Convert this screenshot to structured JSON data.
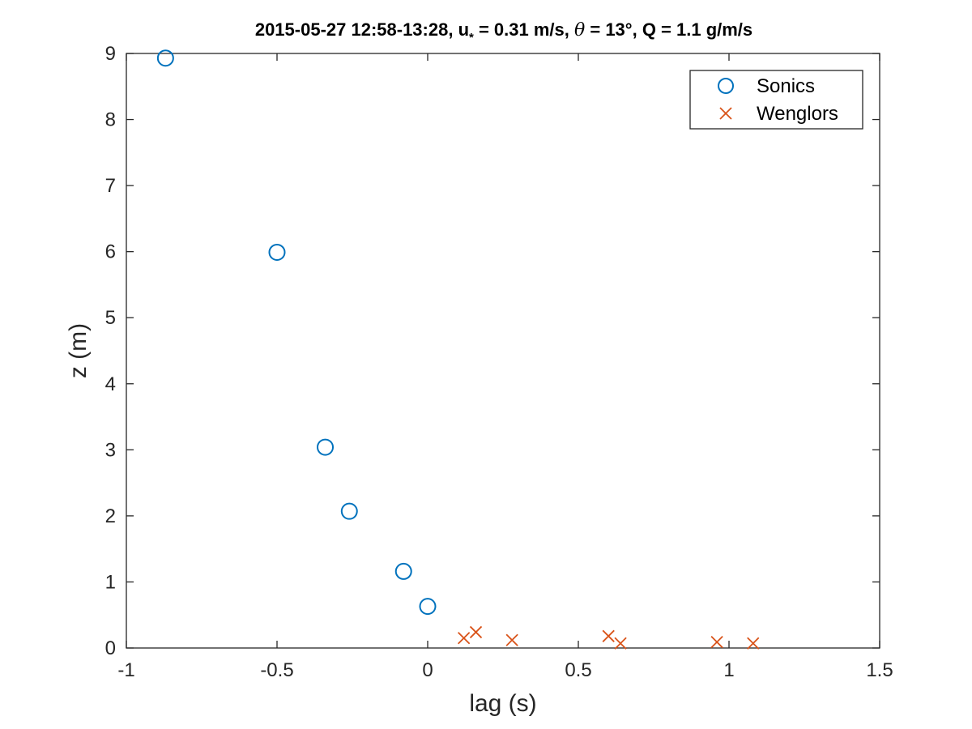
{
  "chart_data": {
    "type": "scatter",
    "title": {
      "date_time": "2015-05-27 12:58-13:28, ",
      "ustar_symbol": "u",
      "ustar_subscript": "*",
      "ustar_value": " = 0.31 m/s, ",
      "theta_symbol": "θ",
      "theta_value": " = 13°, Q = 1.1 g/m/s"
    },
    "xlabel": "lag (s)",
    "ylabel": "z (m)",
    "xlim": [
      -1,
      1.5
    ],
    "ylim": [
      0,
      9
    ],
    "xticks": [
      -1,
      -0.5,
      0,
      0.5,
      1,
      1.5
    ],
    "xtick_labels": [
      "-1",
      "-0.5",
      "0",
      "0.5",
      "1",
      "1.5"
    ],
    "yticks": [
      0,
      1,
      2,
      3,
      4,
      5,
      6,
      7,
      8,
      9
    ],
    "ytick_labels": [
      "0",
      "1",
      "2",
      "3",
      "4",
      "5",
      "6",
      "7",
      "8",
      "9"
    ],
    "grid": false,
    "legend_position": "top-right",
    "series": [
      {
        "name": "Sonics",
        "marker": "circle",
        "color": "#0072BD",
        "points": [
          {
            "x": -0.87,
            "y": 8.93
          },
          {
            "x": -0.5,
            "y": 5.99
          },
          {
            "x": -0.34,
            "y": 3.04
          },
          {
            "x": -0.26,
            "y": 2.07
          },
          {
            "x": -0.08,
            "y": 1.16
          },
          {
            "x": 0.0,
            "y": 0.63
          }
        ]
      },
      {
        "name": "Wenglors",
        "marker": "x",
        "color": "#D95319",
        "points": [
          {
            "x": 0.12,
            "y": 0.15
          },
          {
            "x": 0.16,
            "y": 0.24
          },
          {
            "x": 0.28,
            "y": 0.12
          },
          {
            "x": 0.6,
            "y": 0.18
          },
          {
            "x": 0.64,
            "y": 0.07
          },
          {
            "x": 0.96,
            "y": 0.09
          },
          {
            "x": 1.08,
            "y": 0.07
          }
        ]
      }
    ]
  }
}
